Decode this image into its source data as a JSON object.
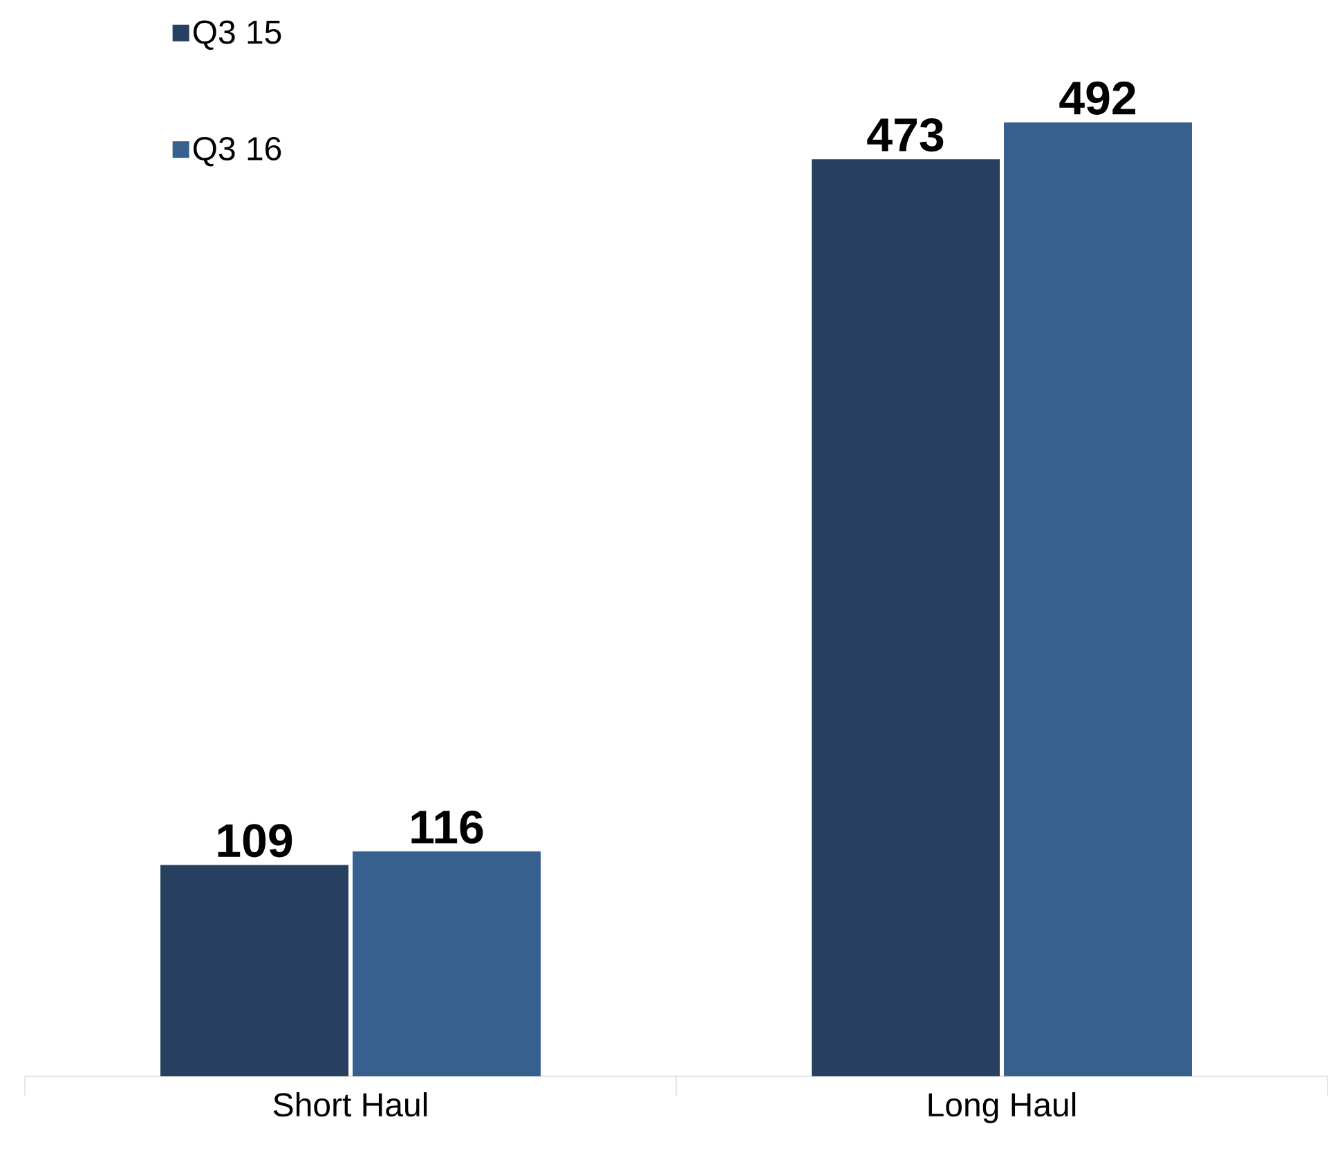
{
  "chart_data": {
    "type": "bar",
    "categories": [
      "Short Haul",
      "Long Haul"
    ],
    "series": [
      {
        "name": "Q3 15",
        "color": "#28405f",
        "values": [
          109,
          473
        ]
      },
      {
        "name": "Q3 16",
        "color": "#37608f",
        "values": [
          116,
          492
        ]
      }
    ],
    "data_labels": true,
    "legend": "top left"
  }
}
